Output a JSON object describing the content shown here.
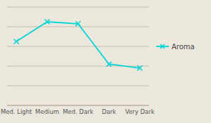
{
  "chart_data": {
    "type": "line",
    "title": "",
    "categories": [
      "Med. Light",
      "Medium",
      "Med. Dark",
      "Dark",
      "Very Dark"
    ],
    "series": [
      {
        "name": "Aroma",
        "color": "#00d4d4",
        "marker": "x",
        "values": [
          6.5,
          8.5,
          8.3,
          4.2,
          3.8
        ]
      }
    ],
    "ylim": [
      0,
      10
    ],
    "yticks": [
      0,
      2,
      4,
      6,
      8,
      10
    ],
    "grid": true,
    "legend": "right",
    "tick_labels": "x"
  }
}
